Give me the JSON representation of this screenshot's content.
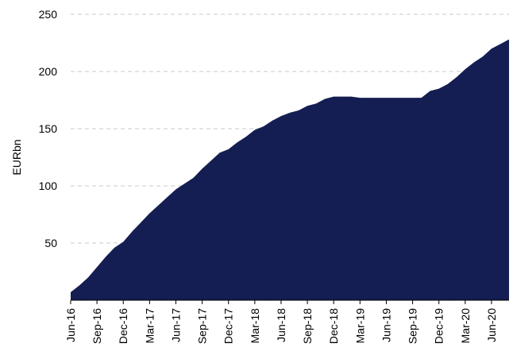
{
  "chart_data": {
    "type": "area",
    "y_label": "EURbn",
    "color": "#141e52",
    "categories": [
      "Jun-16",
      null,
      null,
      "Sep-16",
      null,
      null,
      "Dec-16",
      null,
      null,
      "Mar-17",
      null,
      null,
      "Jun-17",
      null,
      null,
      "Sep-17",
      null,
      null,
      "Dec-17",
      null,
      null,
      "Mar-18",
      null,
      null,
      "Jun-18",
      null,
      null,
      "Sep-18",
      null,
      null,
      "Dec-18",
      null,
      null,
      "Mar-19",
      null,
      null,
      "Jun-19",
      null,
      null,
      "Sep-19",
      null,
      null,
      "Dec-19",
      null,
      null,
      "Mar-20",
      null,
      null,
      "Jun-20",
      null,
      null
    ],
    "values": [
      7,
      13,
      20,
      29,
      38,
      46,
      51,
      60,
      68,
      76,
      83,
      90,
      97,
      102,
      107,
      115,
      122,
      129,
      132,
      138,
      143,
      149,
      152,
      157,
      161,
      164,
      166,
      170,
      172,
      176,
      178,
      178,
      178,
      177,
      177,
      177,
      177,
      177,
      177,
      177,
      177,
      183,
      185,
      189,
      195,
      202,
      208,
      213,
      220,
      224,
      228
    ],
    "ylim": [
      0,
      250
    ],
    "yticks": [
      50,
      100,
      150,
      200,
      250
    ],
    "grid": true
  }
}
